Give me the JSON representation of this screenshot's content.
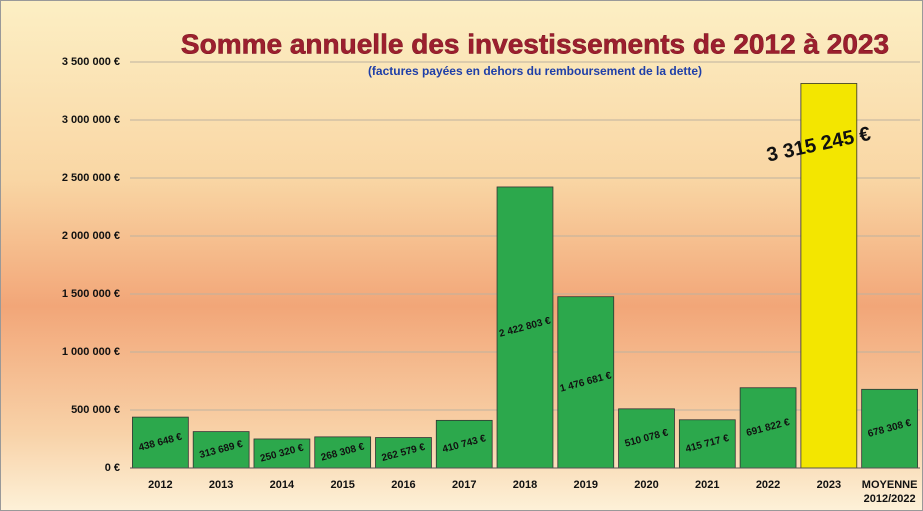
{
  "chart_data": {
    "type": "bar",
    "title": "Somme annuelle des investissements de 2012 à 2023",
    "subtitle": "(factures payées en dehors du remboursement de la dette)",
    "categories": [
      "2012",
      "2013",
      "2014",
      "2015",
      "2016",
      "2017",
      "2018",
      "2019",
      "2020",
      "2021",
      "2022",
      "2023",
      "MOYENNE\n2012/2022"
    ],
    "values": [
      438648,
      313689,
      250320,
      268308,
      262579,
      410743,
      2422803,
      1476681,
      510078,
      415717,
      691822,
      3315245,
      678308
    ],
    "value_labels": [
      "438 648 €",
      "313 689 €",
      "250 320 €",
      "268 308 €",
      "262 579 €",
      "410 743 €",
      "2 422 803 €",
      "1 476 681 €",
      "510 078 €",
      "415 717 €",
      "691 822 €",
      "3 315 245 €",
      "678 308 €"
    ],
    "colors": [
      "#2ca84c",
      "#2ca84c",
      "#2ca84c",
      "#2ca84c",
      "#2ca84c",
      "#2ca84c",
      "#2ca84c",
      "#2ca84c",
      "#2ca84c",
      "#2ca84c",
      "#2ca84c",
      "#f3e600",
      "#2ca84c"
    ],
    "ylim": [
      0,
      3500000
    ],
    "yticks": [
      {
        "value": 0,
        "label": "0 €"
      },
      {
        "value": 500000,
        "label": "500 000 €"
      },
      {
        "value": 1000000,
        "label": "1 000 000 €"
      },
      {
        "value": 1500000,
        "label": "1 500 000 €"
      },
      {
        "value": 2000000,
        "label": "2 000 000 €"
      },
      {
        "value": 2500000,
        "label": "2 500 000 €"
      },
      {
        "value": 3000000,
        "label": "3 000 000 €"
      },
      {
        "value": 3500000,
        "label": "3 500 000 €"
      }
    ],
    "grid": true
  }
}
